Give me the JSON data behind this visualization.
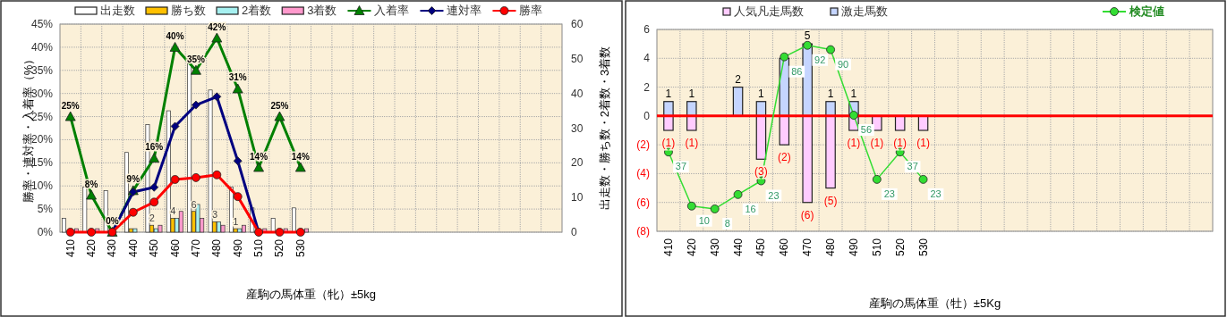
{
  "chart_data": [
    {
      "type": "bar",
      "xlabel": "産駒の馬体重（牝）±5kg",
      "ylabel": "勝率・連対率・入着率（%）",
      "y2label": "出走数・勝ち数・2着数・3着数",
      "categories": [
        "410",
        "420",
        "430",
        "440",
        "450",
        "460",
        "470",
        "480",
        "490",
        "510",
        "520",
        "530",
        null,
        null,
        null,
        null,
        null,
        null,
        null,
        null,
        null,
        null,
        null,
        null
      ],
      "series": [
        {
          "name": "出走数",
          "axis": "y2",
          "color": "#ffffff",
          "values": [
            4,
            13,
            12,
            23,
            31,
            35,
            51,
            41,
            13,
            7,
            4,
            7,
            null,
            null,
            null,
            null,
            null,
            null,
            null,
            null,
            null,
            null,
            null,
            null
          ]
        },
        {
          "name": "勝ち数",
          "axis": "y2",
          "color": "#ffc000",
          "values": [
            0,
            0,
            0,
            1,
            2,
            4,
            6,
            3,
            1,
            0,
            0,
            0,
            null,
            null,
            null,
            null,
            null,
            null,
            null,
            null,
            null,
            null,
            null,
            null
          ],
          "value_labels": [
            null,
            null,
            null,
            null,
            "2",
            "4",
            "6",
            "3",
            "1",
            null,
            null,
            null,
            null,
            null,
            null,
            null,
            null,
            null,
            null,
            null,
            null,
            null,
            null,
            null
          ]
        },
        {
          "name": "2着数",
          "axis": "y2",
          "color": "#a6f0f0",
          "values": [
            0,
            0,
            0,
            1,
            1,
            4,
            8,
            3,
            1,
            0,
            0,
            0,
            null,
            null,
            null,
            null,
            null,
            null,
            null,
            null,
            null,
            null,
            null,
            null
          ]
        },
        {
          "name": "3着数",
          "axis": "y2",
          "color": "#ff99cc",
          "values": [
            1,
            1,
            0,
            0,
            2,
            6,
            4,
            2,
            2,
            1,
            1,
            1,
            null,
            null,
            null,
            null,
            null,
            null,
            null,
            null,
            null,
            null,
            null,
            null
          ]
        },
        {
          "name": "入着率",
          "type": "line",
          "color": "#008000",
          "marker": "triangle",
          "values": [
            25,
            8,
            0,
            9,
            16,
            40,
            35,
            42,
            31,
            14,
            25,
            14,
            null,
            null,
            null,
            null,
            null,
            null,
            null,
            null,
            null,
            null,
            null,
            null
          ],
          "value_labels": [
            "25%",
            "8%",
            "0%",
            "9%",
            "16%",
            "40%",
            "35%",
            "42%",
            "31%",
            "14%",
            "25%",
            "14%",
            null,
            null,
            null,
            null,
            null,
            null,
            null,
            null,
            null,
            null,
            null,
            null
          ]
        },
        {
          "name": "連対率",
          "type": "line",
          "color": "#000080",
          "marker": "diamond",
          "values": [
            null,
            null,
            0,
            8.7,
            9.7,
            22.9,
            27.5,
            29.3,
            15.4,
            0,
            null,
            null,
            null,
            null,
            null,
            null,
            null,
            null,
            null,
            null,
            null,
            null,
            null,
            null
          ]
        },
        {
          "name": "勝率",
          "type": "line",
          "color": "#ff0000",
          "marker": "circle",
          "values": [
            0,
            0,
            0,
            4.3,
            6.5,
            11.4,
            11.8,
            12.4,
            7.7,
            0,
            0,
            0,
            null,
            null,
            null,
            null,
            null,
            null,
            null,
            null,
            null,
            null,
            null,
            null
          ]
        }
      ],
      "ylim": [
        0,
        45
      ],
      "yticks": [
        {
          "value": 0,
          "label": "0%"
        },
        {
          "value": 5,
          "label": "5%"
        },
        {
          "value": 10,
          "label": "10%"
        },
        {
          "value": 15,
          "label": "15%"
        },
        {
          "value": 20,
          "label": "20%"
        },
        {
          "value": 25,
          "label": "25%"
        },
        {
          "value": 30,
          "label": "30%"
        },
        {
          "value": 35,
          "label": "35%"
        },
        {
          "value": 40,
          "label": "40%"
        },
        {
          "value": 45,
          "label": "45%"
        }
      ],
      "y2lim": [
        0,
        60
      ],
      "y2ticks": [
        0,
        10,
        20,
        30,
        40,
        50,
        60
      ],
      "grid": true,
      "legend": "top"
    },
    {
      "type": "bar",
      "xlabel": "産駒の馬体重（牡）±5Kg",
      "stacked": true,
      "categories": [
        "410",
        "420",
        "430",
        "440",
        "450",
        "460",
        "470",
        "480",
        "490",
        "510",
        "520",
        "530",
        null,
        null,
        null,
        null,
        null,
        null,
        null,
        null,
        null,
        null,
        null,
        null
      ],
      "series": [
        {
          "name": "人気凡走馬数",
          "color": "#ffccff",
          "values": [
            -1,
            -1,
            null,
            null,
            -3,
            -2,
            -6,
            -5,
            -1,
            -1,
            -1,
            -1,
            null,
            null,
            null,
            null,
            null,
            null,
            null,
            null,
            null,
            null,
            null,
            null
          ],
          "value_labels": [
            "(1)",
            "(1)",
            null,
            null,
            "(3)",
            "(2)",
            "(6)",
            "(5)",
            "(1)",
            "(1)",
            "(1)",
            "(1)",
            null,
            null,
            null,
            null,
            null,
            null,
            null,
            null,
            null,
            null,
            null,
            null
          ]
        },
        {
          "name": "激走馬数",
          "color": "#c5d5ff",
          "values": [
            1,
            1,
            null,
            2,
            1,
            4,
            5,
            1,
            1,
            null,
            null,
            null,
            null,
            null,
            null,
            null,
            null,
            null,
            null,
            null,
            null,
            null,
            null,
            null
          ],
          "value_labels": [
            "1",
            "1",
            null,
            "2",
            "1",
            null,
            "5",
            "1",
            "1",
            null,
            null,
            null,
            null,
            null,
            null,
            null,
            null,
            null,
            null,
            null,
            null,
            null,
            null,
            null
          ]
        },
        {
          "name": "検定値",
          "type": "line",
          "color": "#33dd33",
          "marker": "circle",
          "values": [
            -2.5,
            -6.25,
            -6.45,
            -5.45,
            -4.5,
            4.1,
            4.9,
            4.6,
            0.05,
            -4.4,
            -2.5,
            -4.4,
            null,
            null,
            null,
            null,
            null,
            null,
            null,
            null,
            null,
            null,
            null,
            null
          ]
        }
      ],
      "annotations": [
        {
          "text": "37",
          "x": "410",
          "y": -2.5
        },
        {
          "text": "10",
          "x": "420",
          "y": -6.25
        },
        {
          "text": "8",
          "x": "430",
          "y": -6.45
        },
        {
          "text": "16",
          "x": "440",
          "y": -5.45
        },
        {
          "text": "23",
          "x": "450",
          "y": -4.5
        },
        {
          "text": "86",
          "x": "460",
          "y": 4.1
        },
        {
          "text": "92",
          "x": "470",
          "y": 4.9
        },
        {
          "text": "90",
          "x": "480",
          "y": 4.6
        },
        {
          "text": "56",
          "x": "490",
          "y": 0.05
        },
        {
          "text": "23",
          "x": "510",
          "y": -4.4
        },
        {
          "text": "37",
          "x": "520",
          "y": -2.5
        },
        {
          "text": "23",
          "x": "530",
          "y": -4.4
        }
      ],
      "ylim": [
        -8,
        6
      ],
      "yticks": [
        {
          "value": -8,
          "label": "(8)"
        },
        {
          "value": -6,
          "label": "(6)"
        },
        {
          "value": -4,
          "label": "(4)"
        },
        {
          "value": -2,
          "label": "(2)"
        },
        0,
        2,
        4,
        6
      ],
      "ref_lines": [
        {
          "axis": "y",
          "value": 0,
          "color": "#ff0000"
        }
      ],
      "grid": true,
      "legend": "top"
    }
  ]
}
